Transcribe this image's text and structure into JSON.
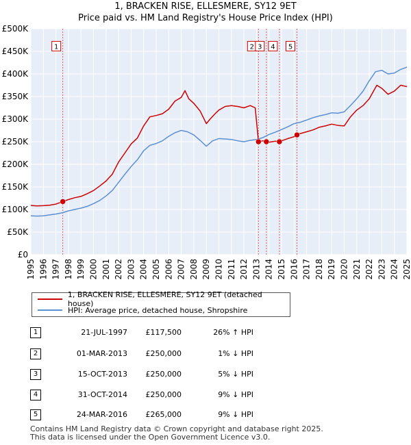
{
  "header": {
    "title": "1, BRACKEN RISE, ELLESMERE, SY12 9ET",
    "subtitle": "Price paid vs. HM Land Registry's House Price Index (HPI)"
  },
  "legend": {
    "property": "1, BRACKEN RISE, ELLESMERE, SY12 9ET (detached house)",
    "hpi": "HPI: Average price, detached house, Shropshire"
  },
  "transactions": [
    {
      "num": "1",
      "date": "21-JUL-1997",
      "price": "£117,500",
      "hpi": "26% ↑ HPI"
    },
    {
      "num": "2",
      "date": "01-MAR-2013",
      "price": "£250,000",
      "hpi": "1% ↓ HPI"
    },
    {
      "num": "3",
      "date": "15-OCT-2013",
      "price": "£250,000",
      "hpi": "5% ↓ HPI"
    },
    {
      "num": "4",
      "date": "31-OCT-2014",
      "price": "£250,000",
      "hpi": "9% ↓ HPI"
    },
    {
      "num": "5",
      "date": "24-MAR-2016",
      "price": "£265,000",
      "hpi": "9% ↓ HPI"
    }
  ],
  "footer": {
    "line1": "Contains HM Land Registry data © Crown copyright and database right 2025.",
    "line2": "This data is licensed under the Open Government Licence v3.0."
  },
  "colors": {
    "property": "#cc0000",
    "hpi": "#5b8fd4",
    "plot_bg": "#e8eef8",
    "marker_line": "#dd3333"
  },
  "chart_data": {
    "type": "line",
    "xlim": [
      1995,
      2025
    ],
    "ylim": [
      0,
      500000
    ],
    "x_ticks": [
      "1995",
      "1996",
      "1997",
      "1998",
      "1999",
      "2000",
      "2001",
      "2002",
      "2003",
      "2004",
      "2005",
      "2006",
      "2007",
      "2008",
      "2009",
      "2010",
      "2011",
      "2012",
      "2013",
      "2014",
      "2015",
      "2016",
      "2017",
      "2018",
      "2019",
      "2020",
      "2021",
      "2022",
      "2023",
      "2024",
      "2025"
    ],
    "y_ticks": [
      {
        "value": 0,
        "label": "£0"
      },
      {
        "value": 50000,
        "label": "£50K"
      },
      {
        "value": 100000,
        "label": "£100K"
      },
      {
        "value": 150000,
        "label": "£150K"
      },
      {
        "value": 200000,
        "label": "£200K"
      },
      {
        "value": 250000,
        "label": "£250K"
      },
      {
        "value": 300000,
        "label": "£300K"
      },
      {
        "value": 350000,
        "label": "£350K"
      },
      {
        "value": 400000,
        "label": "£400K"
      },
      {
        "value": 450000,
        "label": "£450K"
      },
      {
        "value": 500000,
        "label": "£500K"
      }
    ],
    "grid": true,
    "legend_position": "below",
    "series": [
      {
        "name": "1, BRACKEN RISE, ELLESMERE, SY12 9ET (detached house)",
        "x": [
          1995.0,
          1995.5,
          1996.0,
          1996.5,
          1997.0,
          1997.55,
          1998.0,
          1998.5,
          1999.0,
          1999.5,
          2000.0,
          2000.5,
          2001.0,
          2001.5,
          2002.0,
          2002.5,
          2003.0,
          2003.5,
          2004.0,
          2004.5,
          2005.0,
          2005.5,
          2006.0,
          2006.5,
          2007.0,
          2007.3,
          2007.6,
          2008.0,
          2008.5,
          2009.0,
          2009.3,
          2009.7,
          2010.0,
          2010.5,
          2011.0,
          2011.5,
          2012.0,
          2012.5,
          2012.9,
          2013.16,
          2013.5,
          2013.79,
          2014.0,
          2014.5,
          2014.83,
          2015.0,
          2015.5,
          2016.0,
          2016.23,
          2016.5,
          2017.0,
          2017.5,
          2018.0,
          2018.5,
          2019.0,
          2019.5,
          2020.0,
          2020.5,
          2021.0,
          2021.5,
          2022.0,
          2022.3,
          2022.6,
          2023.0,
          2023.5,
          2024.0,
          2024.5,
          2025.0
        ],
        "y": [
          109000,
          108000,
          108500,
          109500,
          112000,
          117500,
          122000,
          126000,
          129000,
          135000,
          142000,
          152000,
          163000,
          178000,
          205000,
          225000,
          245000,
          258000,
          285000,
          305000,
          308000,
          312000,
          322000,
          340000,
          348000,
          363000,
          345000,
          335000,
          318000,
          290000,
          300000,
          312000,
          320000,
          328000,
          330000,
          328000,
          325000,
          330000,
          325000,
          250000,
          252000,
          250000,
          249000,
          251000,
          250000,
          252000,
          257000,
          261000,
          265000,
          268000,
          272000,
          276000,
          282000,
          285000,
          289000,
          286000,
          285000,
          305000,
          320000,
          330000,
          345000,
          360000,
          375000,
          368000,
          355000,
          362000,
          375000,
          372000
        ]
      },
      {
        "name": "HPI: Average price, detached house, Shropshire",
        "x": [
          1995.0,
          1995.5,
          1996.0,
          1996.5,
          1997.0,
          1997.55,
          1998.0,
          1998.5,
          1999.0,
          1999.5,
          2000.0,
          2000.5,
          2001.0,
          2001.5,
          2002.0,
          2002.5,
          2003.0,
          2003.5,
          2004.0,
          2004.5,
          2005.0,
          2005.5,
          2006.0,
          2006.5,
          2007.0,
          2007.5,
          2008.0,
          2008.5,
          2009.0,
          2009.5,
          2010.0,
          2010.5,
          2011.0,
          2011.5,
          2012.0,
          2012.5,
          2013.0,
          2013.5,
          2014.0,
          2014.5,
          2015.0,
          2015.5,
          2016.0,
          2016.5,
          2017.0,
          2017.5,
          2018.0,
          2018.5,
          2019.0,
          2019.5,
          2020.0,
          2020.5,
          2021.0,
          2021.5,
          2022.0,
          2022.5,
          2023.0,
          2023.5,
          2024.0,
          2024.5,
          2025.0
        ],
        "y": [
          86000,
          85500,
          86000,
          88000,
          90000,
          93000,
          97000,
          100000,
          103000,
          107000,
          113000,
          120000,
          130000,
          142000,
          160000,
          178000,
          195000,
          210000,
          230000,
          242000,
          246000,
          252000,
          262000,
          270000,
          275000,
          272000,
          265000,
          253000,
          240000,
          252000,
          257000,
          256000,
          255000,
          252000,
          250000,
          253000,
          255000,
          259000,
          266000,
          271000,
          277000,
          283000,
          290000,
          293000,
          298000,
          303000,
          307000,
          310000,
          314000,
          313000,
          316000,
          330000,
          345000,
          362000,
          385000,
          405000,
          408000,
          400000,
          402000,
          410000,
          415000
        ]
      }
    ],
    "markers": [
      {
        "num": "1",
        "x": 1997.55,
        "y": 117500
      },
      {
        "num": "2",
        "x": 2013.16,
        "y": 250000
      },
      {
        "num": "3",
        "x": 2013.79,
        "y": 250000
      },
      {
        "num": "4",
        "x": 2014.83,
        "y": 250000
      },
      {
        "num": "5",
        "x": 2016.23,
        "y": 265000
      }
    ]
  }
}
